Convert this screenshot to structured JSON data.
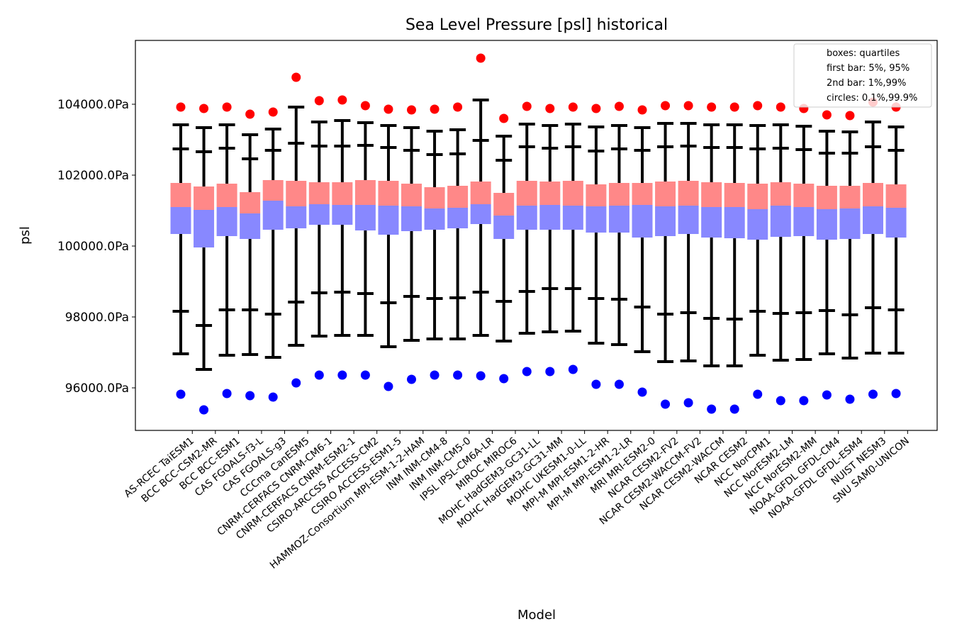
{
  "chart_data": {
    "type": "box",
    "title": "Sea Level Pressure [psl] historical",
    "xlabel": "Model",
    "ylabel": "psl",
    "ylim": [
      94800,
      105800
    ],
    "yticks": [
      96000,
      98000,
      100000,
      102000,
      104000
    ],
    "ytick_labels": [
      "96000.0Pa",
      "98000.0Pa",
      "100000.0Pa",
      "102000.0Pa",
      "104000.0Pa"
    ],
    "legend": {
      "position": "top-right",
      "entries": [
        "boxes: quartiles",
        "first bar: 5%, 95%",
        "2nd bar: 1%,99%",
        "circles: 0.1%,99.9%"
      ]
    },
    "colors": {
      "upper_box": "#ff8888",
      "lower_box": "#8888ff",
      "whisker": "#000000",
      "high_circle": "#ff0000",
      "low_circle": "#0000ff"
    },
    "categories": [
      "AS-RCEC TaiESM1",
      "BCC BCC-CSM2-MR",
      "BCC BCC-ESM1",
      "CAS FGOALS-f3-L",
      "CAS FGOALS-g3",
      "CCCma CanESM5",
      "CNRM-CERFACS CNRM-CM6-1",
      "CNRM-CERFACS CNRM-ESM2-1",
      "CSIRO-ARCCSS ACCESS-CM2",
      "CSIRO ACCESS-ESM1-5",
      "HAMMOZ-Consortium MPI-ESM-1-2-HAM",
      "INM INM-CM4-8",
      "INM INM-CM5-0",
      "IPSL IPSL-CM6A-LR",
      "MIROC MIROC6",
      "MOHC HadGEM3-GC31-LL",
      "MOHC HadGEM3-GC31-MM",
      "MOHC UKESM1-0-LL",
      "MPI-M MPI-ESM1-2-HR",
      "MPI-M MPI-ESM1-2-LR",
      "MRI MRI-ESM2-0",
      "NCAR CESM2-FV2",
      "NCAR CESM2-WACCM-FV2",
      "NCAR CESM2-WACCM",
      "NCAR CESM2",
      "NCC NorCPM1",
      "NCC NorESM2-LM",
      "NCC NorESM2-MM",
      "NOAA-GFDL GFDL-CM4",
      "NOAA-GFDL GFDL-ESM4",
      "NUIST NESM3",
      "SNU SAM0-UNICON"
    ],
    "series": {
      "p0_1": [
        95820,
        95380,
        95840,
        95780,
        95740,
        96140,
        96360,
        96360,
        96360,
        96040,
        96240,
        96360,
        96360,
        96340,
        96260,
        96460,
        96460,
        96520,
        96100,
        96100,
        95880,
        95540,
        95580,
        95400,
        95400,
        95820,
        95640,
        95640,
        95800,
        95680,
        95820,
        95840
      ],
      "p1": [
        96960,
        96520,
        96920,
        96940,
        96860,
        97200,
        97460,
        97480,
        97480,
        97160,
        97340,
        97380,
        97380,
        97480,
        97320,
        97540,
        97580,
        97600,
        97260,
        97220,
        97020,
        96740,
        96760,
        96620,
        96620,
        96920,
        96780,
        96800,
        96960,
        96840,
        96980,
        96980
      ],
      "p5": [
        98160,
        97760,
        98200,
        98200,
        98080,
        98420,
        98680,
        98700,
        98660,
        98400,
        98580,
        98520,
        98540,
        98700,
        98440,
        98720,
        98800,
        98800,
        98520,
        98500,
        98280,
        98080,
        98120,
        97960,
        97940,
        98160,
        98100,
        98120,
        98180,
        98060,
        98260,
        98200
      ],
      "q1": [
        100340,
        99960,
        100280,
        100200,
        100460,
        100500,
        100600,
        100600,
        100440,
        100320,
        100420,
        100460,
        100500,
        100620,
        100200,
        100460,
        100460,
        100460,
        100380,
        100380,
        100240,
        100280,
        100340,
        100240,
        100220,
        100180,
        100260,
        100280,
        100180,
        100200,
        100340,
        100240
      ],
      "median": [
        101100,
        101020,
        101100,
        100920,
        101280,
        101120,
        101180,
        101160,
        101160,
        101140,
        101120,
        101060,
        101080,
        101180,
        100860,
        101140,
        101160,
        101140,
        101120,
        101140,
        101160,
        101120,
        101140,
        101100,
        101100,
        101040,
        101140,
        101100,
        101040,
        101060,
        101120,
        101080
      ],
      "q3": [
        101780,
        101680,
        101760,
        101520,
        101860,
        101840,
        101800,
        101800,
        101860,
        101840,
        101760,
        101660,
        101700,
        101820,
        101500,
        101840,
        101820,
        101840,
        101740,
        101780,
        101780,
        101820,
        101840,
        101800,
        101780,
        101760,
        101800,
        101760,
        101700,
        101700,
        101780,
        101740
      ],
      "p95": [
        102740,
        102660,
        102760,
        102460,
        102700,
        102900,
        102820,
        102820,
        102840,
        102780,
        102700,
        102580,
        102600,
        102980,
        102420,
        102800,
        102760,
        102800,
        102680,
        102740,
        102700,
        102800,
        102820,
        102780,
        102780,
        102740,
        102760,
        102720,
        102620,
        102620,
        102800,
        102700
      ],
      "p99": [
        103420,
        103340,
        103420,
        103140,
        103300,
        103920,
        103500,
        103540,
        103480,
        103400,
        103340,
        103240,
        103280,
        104120,
        103100,
        103440,
        103400,
        103440,
        103360,
        103400,
        103340,
        103460,
        103460,
        103420,
        103420,
        103400,
        103420,
        103380,
        103240,
        103220,
        103500,
        103360
      ],
      "p99_9": [
        103920,
        103880,
        103920,
        103720,
        103780,
        104760,
        104100,
        104120,
        103960,
        103860,
        103840,
        103860,
        103920,
        105300,
        103600,
        103940,
        103880,
        103920,
        103880,
        103940,
        103840,
        103960,
        103960,
        103920,
        103920,
        103960,
        103920,
        103880,
        103700,
        103680,
        104060,
        103920
      ]
    }
  }
}
